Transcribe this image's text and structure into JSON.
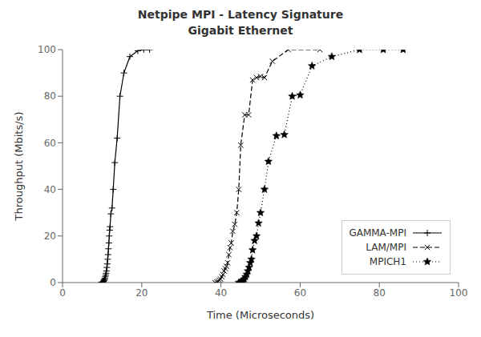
{
  "chart_data": {
    "type": "line",
    "title": "Netpipe MPI - Latency Signature\nGigabit Ethernet",
    "xlabel": "Time (Microseconds)",
    "ylabel": "Throughput (Mbits/s)",
    "xlim": [
      0,
      100
    ],
    "ylim": [
      0,
      100
    ],
    "xticks": [
      0,
      20,
      40,
      60,
      80,
      100
    ],
    "yticks": [
      0,
      20,
      40,
      60,
      80,
      100
    ],
    "grid": false,
    "legend": "lower right",
    "series": [
      {
        "name": "GAMMA-MPI",
        "color": "#000000",
        "line_style": "solid",
        "marker": "plus",
        "x": [
          9.8,
          10.0,
          10.1,
          10.2,
          10.3,
          10.4,
          10.5,
          10.6,
          10.7,
          10.8,
          10.9,
          11.0,
          11.1,
          11.2,
          11.3,
          11.4,
          11.5,
          11.6,
          11.7,
          11.8,
          11.9,
          12.0,
          12.2,
          12.5,
          12.8,
          13.2,
          13.8,
          14.5,
          15.5,
          17.0,
          19.0,
          20.5,
          22.0
        ],
        "values": [
          0.0,
          0.1,
          0.2,
          0.3,
          0.5,
          0.7,
          1.0,
          1.3,
          1.8,
          2.5,
          3.2,
          4.0,
          5.0,
          6.5,
          8.0,
          10.0,
          12.0,
          14.5,
          17.0,
          20.0,
          22.5,
          24.0,
          29.5,
          32.0,
          40.0,
          51.5,
          62.0,
          80.0,
          90.0,
          97.0,
          99.5,
          100.0,
          100.0
        ]
      },
      {
        "name": "LAM/MPI",
        "color": "#000000",
        "line_style": "dashed",
        "marker": "x",
        "x": [
          38.5,
          39.0,
          39.3,
          39.6,
          39.9,
          40.2,
          40.5,
          40.8,
          41.1,
          41.4,
          41.7,
          42.0,
          42.3,
          42.6,
          43.0,
          43.5,
          44.0,
          44.5,
          45.0,
          46.0,
          47.0,
          48.0,
          49.0,
          50.0,
          51.0,
          53.0,
          57.0,
          65.0
        ],
        "values": [
          0.0,
          0.2,
          0.5,
          1.0,
          1.5,
          2.5,
          3.5,
          5.0,
          6.0,
          7.0,
          8.5,
          12.0,
          15.0,
          17.0,
          22.0,
          25.0,
          30.0,
          40.0,
          59.0,
          72.0,
          72.0,
          87.0,
          88.0,
          88.5,
          88.0,
          95.0,
          100.0,
          100.0
        ]
      },
      {
        "name": "MPICH1",
        "color": "#000000",
        "line_style": "dotted",
        "marker": "star",
        "x": [
          44.5,
          45.0,
          45.3,
          45.6,
          45.9,
          46.2,
          46.5,
          46.8,
          47.1,
          47.4,
          47.7,
          48.0,
          48.5,
          49.0,
          49.5,
          50.0,
          51.0,
          52.0,
          54.0,
          56.0,
          58.0,
          60.0,
          63.0,
          68.0,
          75.0,
          81.0,
          86.0
        ],
        "values": [
          0.0,
          0.2,
          0.5,
          1.0,
          1.5,
          2.5,
          3.5,
          5.0,
          6.5,
          8.5,
          10.0,
          14.0,
          18.0,
          20.0,
          25.5,
          30.0,
          40.0,
          52.0,
          63.0,
          63.5,
          80.0,
          80.5,
          93.0,
          97.0,
          100.0,
          100.0,
          100.0
        ]
      }
    ]
  }
}
